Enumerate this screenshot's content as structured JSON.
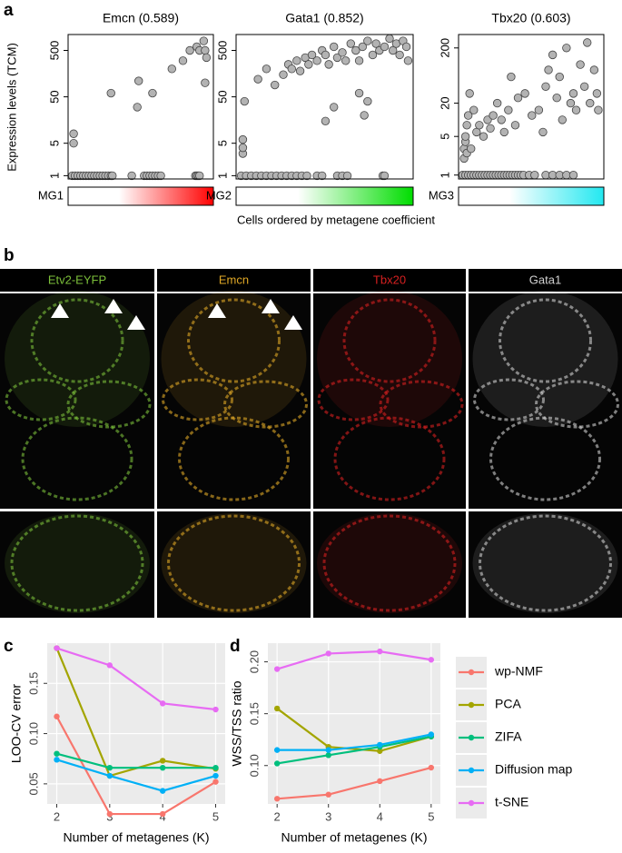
{
  "panel_labels": [
    "a",
    "b",
    "c",
    "d"
  ],
  "panel_a": {
    "y_label": "Expression levels (TCM)",
    "x_label": "Cells ordered by metagene coefficient"
  },
  "panel_b": {
    "channels": [
      {
        "label": "Etv2-EYFP",
        "color": "#7cc03a"
      },
      {
        "label": "Emcn",
        "color": "#e0a826"
      },
      {
        "label": "Tbx20",
        "color": "#d62020"
      },
      {
        "label": "Gata1",
        "color": "#d0d0d0"
      }
    ]
  },
  "chart_data": [
    {
      "type": "scatter",
      "title": "Emcn (0.589)",
      "log_y": true,
      "point_color": "#b3b3b3",
      "xlim": [
        -3,
        102
      ],
      "ylim": [
        0.85,
        1100
      ],
      "yticks": [
        1,
        5,
        50,
        500
      ],
      "metagene": {
        "label": "MG1",
        "color": "#ff0000"
      },
      "x": [
        1,
        1,
        0,
        2,
        4,
        6,
        8,
        10,
        12,
        14,
        16,
        18,
        20,
        22,
        24,
        26,
        28,
        29,
        43,
        52,
        54,
        56,
        58,
        60,
        62,
        64,
        89,
        90,
        91,
        92,
        28,
        47,
        48,
        58,
        72,
        80,
        85,
        90,
        92,
        95,
        96,
        97,
        96
      ],
      "values": [
        8,
        5,
        1,
        1,
        1,
        1,
        1,
        1,
        1,
        1,
        1,
        1,
        1,
        1,
        1,
        1,
        1,
        1,
        1,
        1,
        1,
        1,
        1,
        1,
        1,
        1,
        1,
        1,
        1,
        1,
        60,
        30,
        110,
        60,
        200,
        300,
        500,
        600,
        500,
        800,
        500,
        350,
        100
      ]
    },
    {
      "type": "scatter",
      "title": "Gata1 (0.852)",
      "log_y": true,
      "point_color": "#b3b3b3",
      "xlim": [
        -3,
        102
      ],
      "ylim": [
        0.85,
        1100
      ],
      "yticks": [
        1,
        5,
        50,
        500
      ],
      "metagene": {
        "label": "MG2",
        "color": "#00dd00"
      },
      "x": [
        0,
        3,
        6,
        9,
        12,
        15,
        18,
        21,
        24,
        27,
        30,
        33,
        36,
        39,
        45,
        48,
        57,
        60,
        63,
        84,
        85,
        1,
        1,
        1,
        2,
        10,
        15,
        20,
        25,
        28,
        30,
        33,
        35,
        38,
        40,
        42,
        45,
        48,
        50,
        52,
        55,
        57,
        60,
        62,
        65,
        68,
        70,
        72,
        75,
        78,
        80,
        82,
        85,
        88,
        90,
        92,
        94,
        96,
        98,
        99,
        50,
        55,
        70,
        73,
        75
      ],
      "values": [
        1,
        1,
        1,
        1,
        1,
        1,
        1,
        1,
        1,
        1,
        1,
        1,
        1,
        1,
        1,
        1,
        1,
        1,
        1,
        1,
        1,
        3,
        4,
        6,
        40,
        120,
        200,
        90,
        150,
        250,
        200,
        300,
        180,
        350,
        250,
        400,
        300,
        500,
        400,
        250,
        600,
        350,
        450,
        300,
        700,
        500,
        300,
        600,
        800,
        400,
        700,
        500,
        600,
        900,
        500,
        700,
        400,
        800,
        600,
        300,
        15,
        30,
        60,
        20,
        40
      ]
    },
    {
      "type": "scatter",
      "title": "Tbx20 (0.603)",
      "log_y": true,
      "point_color": "#b3b3b3",
      "xlim": [
        -3,
        102
      ],
      "ylim": [
        0.85,
        350
      ],
      "yticks": [
        1,
        5,
        20,
        200
      ],
      "metagene": {
        "label": "MG3",
        "color": "#22e8f0"
      },
      "x": [
        0,
        2,
        4,
        6,
        8,
        10,
        12,
        14,
        16,
        18,
        20,
        22,
        24,
        26,
        28,
        30,
        32,
        34,
        36,
        38,
        40,
        42,
        44,
        48,
        52,
        60,
        65,
        70,
        75,
        80,
        1,
        1,
        2,
        2,
        3,
        3,
        4,
        5,
        6,
        8,
        10,
        12,
        15,
        18,
        20,
        22,
        25,
        28,
        30,
        33,
        35,
        38,
        40,
        45,
        50,
        55,
        58,
        60,
        62,
        65,
        68,
        70,
        72,
        75,
        78,
        80,
        82,
        85,
        88,
        90,
        92,
        95,
        97,
        98
      ],
      "values": [
        1,
        1,
        1,
        1,
        1,
        1,
        1,
        1,
        1,
        1,
        1,
        1,
        1,
        1,
        1,
        1,
        1,
        1,
        1,
        1,
        1,
        1,
        1,
        1,
        1,
        1,
        1,
        1,
        1,
        1,
        2,
        3,
        4,
        5,
        8,
        2.5,
        12,
        30,
        3,
        15,
        6,
        8,
        5,
        10,
        7,
        12,
        20,
        10,
        6,
        15,
        60,
        8,
        25,
        30,
        12,
        15,
        6,
        40,
        80,
        150,
        25,
        60,
        10,
        200,
        20,
        30,
        15,
        100,
        40,
        250,
        20,
        80,
        30,
        15
      ]
    },
    {
      "type": "line",
      "y_label": "LOO-CV error",
      "x_label": "Number of metagenes (K)",
      "x": [
        2,
        3,
        4,
        5
      ],
      "xlim": [
        1.82,
        5.18
      ],
      "xticks": [
        2,
        3,
        4,
        5
      ],
      "ylim": [
        0.03,
        0.19
      ],
      "yticks": [
        {
          "value": 0.05,
          "label": "0.05"
        },
        {
          "value": 0.1,
          "label": "0.10"
        },
        {
          "value": 0.15,
          "label": "0.15"
        }
      ],
      "series": [
        {
          "name": "wp-NMF",
          "color": "#f8766d",
          "values": [
            0.117,
            0.02,
            0.02,
            0.052
          ]
        },
        {
          "name": "PCA",
          "color": "#a3a500",
          "values": [
            0.185,
            0.058,
            0.073,
            0.065
          ]
        },
        {
          "name": "ZIFA",
          "color": "#00bf7d",
          "values": [
            0.08,
            0.066,
            0.066,
            0.066
          ]
        },
        {
          "name": "Diffusion map",
          "color": "#00b0f6",
          "values": [
            0.074,
            0.058,
            0.043,
            0.058
          ]
        },
        {
          "name": "t-SNE",
          "color": "#e76bf3",
          "values": [
            0.185,
            0.168,
            0.13,
            0.124
          ]
        }
      ]
    },
    {
      "type": "line",
      "y_label": "WSS/TSS ratio",
      "x_label": "Number of metagenes (K)",
      "x": [
        2,
        3,
        4,
        5
      ],
      "xlim": [
        1.82,
        5.18
      ],
      "xticks": [
        2,
        3,
        4,
        5
      ],
      "ylim": [
        0.063,
        0.218
      ],
      "yticks": [
        {
          "value": 0.1,
          "label": "0.10"
        },
        {
          "value": 0.15,
          "label": "0.15"
        },
        {
          "value": 0.2,
          "label": "0.20"
        }
      ],
      "series": [
        {
          "values": [
            0.068,
            0.072,
            0.085,
            0.098
          ]
        },
        {
          "values": [
            0.155,
            0.118,
            0.114,
            0.128
          ]
        },
        {
          "values": [
            0.102,
            0.11,
            0.118,
            0.128
          ]
        },
        {
          "values": [
            0.115,
            0.115,
            0.12,
            0.13
          ]
        },
        {
          "values": [
            0.193,
            0.208,
            0.21,
            0.202
          ]
        }
      ]
    }
  ]
}
